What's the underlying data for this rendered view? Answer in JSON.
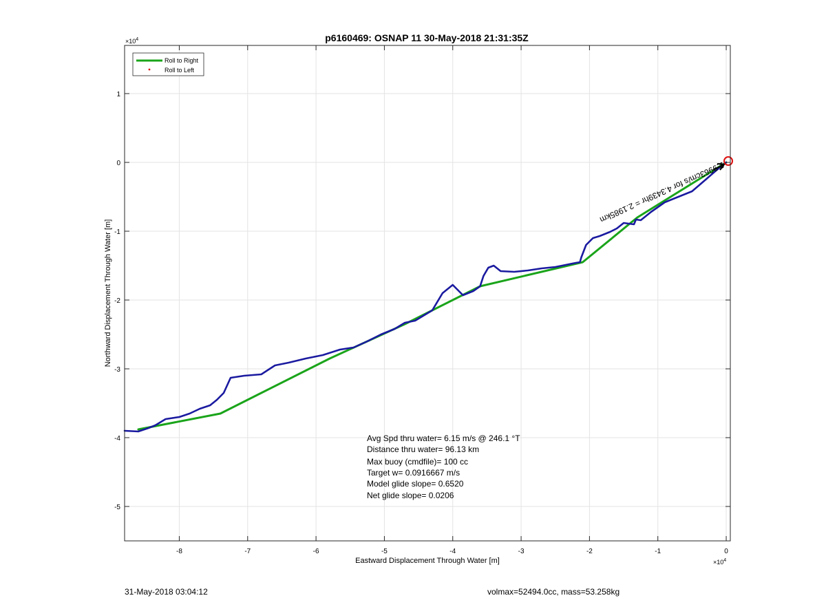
{
  "chart_data": {
    "type": "line",
    "title": "p6160469: OSNAP 11 30-May-2018 21:31:35Z",
    "xlabel": "Eastward Displacement Through Water [m]",
    "ylabel": "Northward Displacement Through Water [m]",
    "x_exponent_label": "×10",
    "x_exponent_power": "4",
    "y_exponent_label": "×10",
    "y_exponent_power": "4",
    "xlim": [
      -88000,
      600
    ],
    "ylim": [
      -55000,
      17000
    ],
    "xticks": [
      -80000,
      -70000,
      -60000,
      -50000,
      -40000,
      -30000,
      -20000,
      -10000,
      0
    ],
    "xtick_labels": [
      "-8",
      "-7",
      "-6",
      "-5",
      "-4",
      "-3",
      "-2",
      "-1",
      "0"
    ],
    "yticks": [
      -50000,
      -40000,
      -30000,
      -20000,
      -10000,
      0,
      10000
    ],
    "ytick_labels": [
      "-5",
      "-4",
      "-3",
      "-2",
      "-1",
      "0",
      "1"
    ],
    "grid": true,
    "legend_position": "top-left",
    "legend": [
      {
        "label": "Roll to Right",
        "color": "#1aa41a",
        "style": "line"
      },
      {
        "label": "Roll to Left",
        "color": "#e01010",
        "style": "dot"
      }
    ],
    "series": [
      {
        "name": "Roll to Right",
        "color": "#1aa41a",
        "x": [
          0,
          -13000,
          -21000,
          -36000,
          -47000,
          -58000,
          -68000,
          -74000,
          -86000
        ],
        "y": [
          0,
          -8000,
          -14500,
          -18000,
          -23500,
          -28500,
          -33500,
          -36500,
          -38800
        ]
      },
      {
        "color": "#1a1aa0",
        "x": [
          0,
          -1500,
          -3000,
          -5000,
          -7000,
          -9000,
          -11000,
          -12500,
          -13200,
          -13500,
          -15000,
          -16000,
          -17000,
          -18500,
          -19500,
          -20500,
          -21200,
          -21400,
          -22000,
          -24000,
          -25000,
          -27000,
          -29000,
          -31000,
          -33000,
          -34000,
          -34800,
          -35500,
          -36000,
          -37000,
          -38500,
          -40000,
          -41500,
          -43000,
          -45500,
          -47000,
          -48500,
          -50500,
          -52500,
          -54500,
          -56500,
          -59000,
          -61500,
          -64000,
          -66000,
          -68000,
          -70500,
          -72500,
          -73500,
          -74500,
          -75500,
          -77000,
          -78500,
          -80000,
          -82000,
          -83500,
          -84500,
          -86000,
          -88000
        ],
        "y": [
          0,
          -1200,
          -2500,
          -4200,
          -5000,
          -5800,
          -7200,
          -8400,
          -8300,
          -9000,
          -8800,
          -9600,
          -10100,
          -10700,
          -11000,
          -12000,
          -13800,
          -14500,
          -14600,
          -15000,
          -15200,
          -15400,
          -15700,
          -15900,
          -15800,
          -15000,
          -15300,
          -16500,
          -18000,
          -18700,
          -19300,
          -17800,
          -19000,
          -21500,
          -23000,
          -23300,
          -24200,
          -25000,
          -26000,
          -26900,
          -27200,
          -28000,
          -28500,
          -29100,
          -29500,
          -30800,
          -31000,
          -31300,
          -33500,
          -34500,
          -35300,
          -35800,
          -36500,
          -37000,
          -37300,
          -38200,
          -38600,
          -39100,
          -39000
        ]
      }
    ],
    "annotations": {
      "arrow_label": "2.9963cm/s for 4.3439hr = 2.1985km",
      "stats_lines": [
        "Avg Spd thru water=  6.15 m/s @ 246.1 °T",
        "Distance thru water= 96.13 km",
        "Max buoy (cmdfile)= 100 cc",
        "Target w= 0.0916667 m/s",
        "Model glide slope= 0.6520",
        "Net glide slope= 0.0206"
      ]
    },
    "marker_color": "#e01010",
    "arrow_color": "#000000"
  },
  "footer": {
    "timestamp": "31-May-2018 03:04:12",
    "volmax_mass": "volmax=52494.0cc, mass=53.258kg"
  }
}
